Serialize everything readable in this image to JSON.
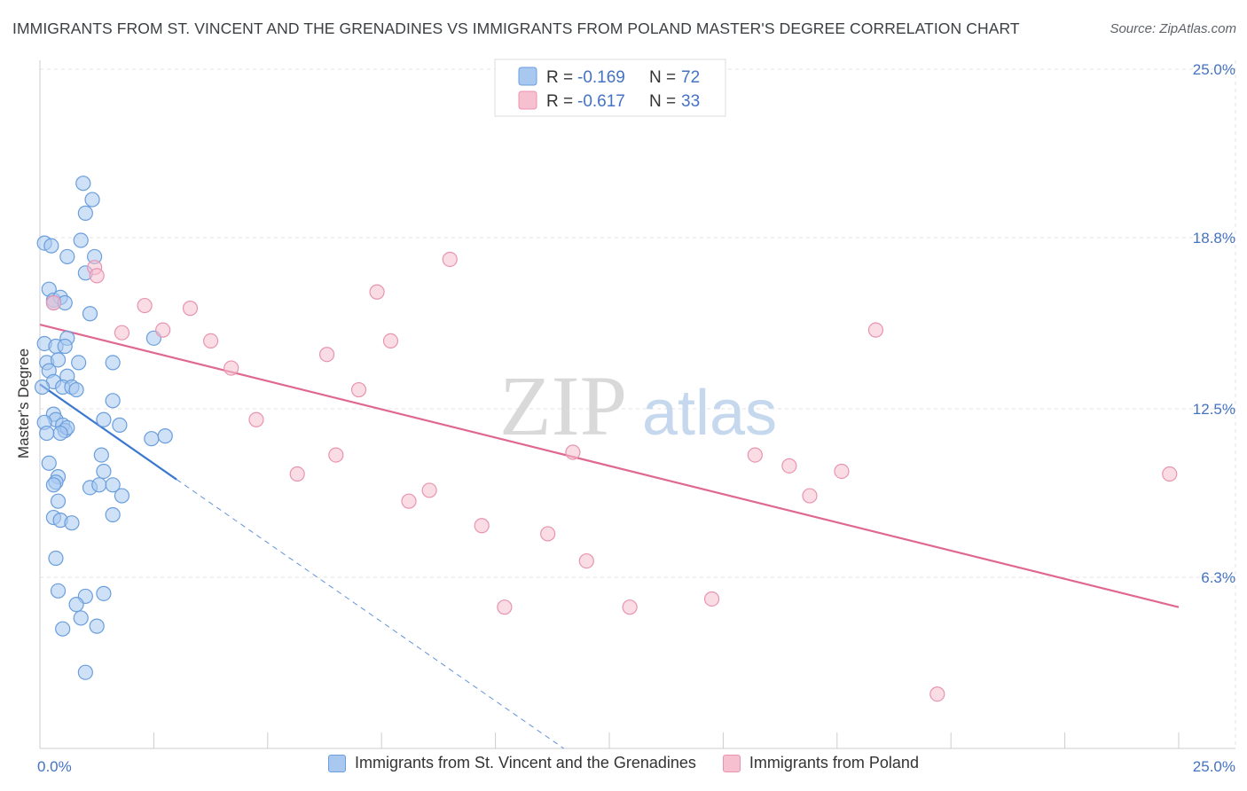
{
  "header": {
    "title": "IMMIGRANTS FROM ST. VINCENT AND THE GRENADINES VS IMMIGRANTS FROM POLAND MASTER'S DEGREE CORRELATION CHART",
    "source": "Source: ZipAtlas.com"
  },
  "watermark": {
    "zip": "ZIP",
    "atlas": "atlas"
  },
  "colors": {
    "blue_fill": "#a8c8f0",
    "blue_stroke": "#6a9edc",
    "blue_line": "#3a78d0",
    "pink_fill": "#f6c0d0",
    "pink_stroke": "#e894b0",
    "pink_line": "#e06890",
    "grid": "#e3e3e3",
    "tick_text": "#4472c4"
  },
  "legend": {
    "rows": [
      {
        "r_label": "R = ",
        "r_value": "-0.169",
        "n_label": "N = ",
        "n_value": "72"
      },
      {
        "r_label": "R = ",
        "r_value": "-0.617",
        "n_label": "N = ",
        "n_value": "33"
      }
    ]
  },
  "chart_data": {
    "type": "scatter",
    "title": "IMMIGRANTS FROM ST. VINCENT AND THE GRENADINES VS IMMIGRANTS FROM POLAND MASTER'S DEGREE CORRELATION CHART",
    "xlabel": "",
    "ylabel": "Master's Degree",
    "xlim": [
      0,
      25
    ],
    "ylim": [
      0,
      25
    ],
    "x_tick_labels": [
      "0.0%",
      "25.0%"
    ],
    "y_ticks": [
      6.3,
      12.5,
      18.8,
      25.0
    ],
    "y_tick_labels": [
      "6.3%",
      "12.5%",
      "18.8%",
      "25.0%"
    ],
    "grid": true,
    "legend_position": "top-center",
    "series": [
      {
        "name": "Immigrants from St. Vincent and the Grenadines",
        "color": "#a8c8f0",
        "R": -0.169,
        "N": 72,
        "points": [
          [
            0.95,
            20.8
          ],
          [
            1.15,
            20.2
          ],
          [
            1.0,
            19.7
          ],
          [
            0.1,
            18.6
          ],
          [
            0.25,
            18.5
          ],
          [
            0.9,
            18.7
          ],
          [
            0.6,
            18.1
          ],
          [
            1.2,
            18.1
          ],
          [
            1.0,
            17.5
          ],
          [
            0.2,
            16.9
          ],
          [
            0.3,
            16.5
          ],
          [
            0.45,
            16.6
          ],
          [
            0.3,
            16.4
          ],
          [
            0.55,
            16.4
          ],
          [
            1.1,
            16.0
          ],
          [
            0.6,
            15.1
          ],
          [
            2.5,
            15.1
          ],
          [
            0.1,
            14.9
          ],
          [
            0.35,
            14.8
          ],
          [
            0.55,
            14.8
          ],
          [
            0.15,
            14.2
          ],
          [
            0.4,
            14.3
          ],
          [
            0.85,
            14.2
          ],
          [
            1.6,
            14.2
          ],
          [
            0.2,
            13.9
          ],
          [
            0.6,
            13.7
          ],
          [
            0.3,
            13.5
          ],
          [
            0.5,
            13.3
          ],
          [
            0.7,
            13.3
          ],
          [
            0.8,
            13.2
          ],
          [
            0.05,
            13.3
          ],
          [
            1.6,
            12.8
          ],
          [
            0.3,
            12.3
          ],
          [
            0.35,
            12.1
          ],
          [
            1.4,
            12.1
          ],
          [
            0.1,
            12.0
          ],
          [
            0.5,
            11.9
          ],
          [
            1.75,
            11.9
          ],
          [
            0.55,
            11.7
          ],
          [
            0.6,
            11.8
          ],
          [
            0.45,
            11.6
          ],
          [
            0.15,
            11.6
          ],
          [
            2.45,
            11.4
          ],
          [
            2.75,
            11.5
          ],
          [
            1.35,
            10.8
          ],
          [
            0.2,
            10.5
          ],
          [
            0.4,
            10.0
          ],
          [
            1.4,
            10.2
          ],
          [
            0.35,
            9.8
          ],
          [
            0.3,
            9.7
          ],
          [
            1.1,
            9.6
          ],
          [
            1.3,
            9.7
          ],
          [
            1.6,
            9.7
          ],
          [
            1.8,
            9.3
          ],
          [
            0.4,
            9.1
          ],
          [
            0.3,
            8.5
          ],
          [
            1.6,
            8.6
          ],
          [
            0.45,
            8.4
          ],
          [
            0.7,
            8.3
          ],
          [
            0.35,
            7.0
          ],
          [
            0.4,
            5.8
          ],
          [
            1.4,
            5.7
          ],
          [
            1.0,
            5.6
          ],
          [
            0.8,
            5.3
          ],
          [
            0.9,
            4.8
          ],
          [
            1.25,
            4.5
          ],
          [
            0.5,
            4.4
          ],
          [
            1.0,
            2.8
          ]
        ],
        "trend": {
          "x": [
            0,
            3.0
          ],
          "y": [
            13.4,
            9.9
          ]
        },
        "trend_extended": {
          "x": [
            3.0,
            11.5
          ],
          "y": [
            9.9,
            0
          ]
        }
      },
      {
        "name": "Immigrants from Poland",
        "color": "#f6c0d0",
        "R": -0.617,
        "N": 33,
        "points": [
          [
            0.3,
            16.4
          ],
          [
            1.2,
            17.7
          ],
          [
            1.25,
            17.4
          ],
          [
            2.3,
            16.3
          ],
          [
            3.3,
            16.2
          ],
          [
            2.7,
            15.4
          ],
          [
            1.8,
            15.3
          ],
          [
            3.75,
            15.0
          ],
          [
            4.2,
            14.0
          ],
          [
            6.3,
            14.5
          ],
          [
            7.4,
            16.8
          ],
          [
            9.0,
            18.0
          ],
          [
            7.7,
            15.0
          ],
          [
            7.0,
            13.2
          ],
          [
            4.75,
            12.1
          ],
          [
            5.65,
            10.1
          ],
          [
            6.5,
            10.8
          ],
          [
            8.55,
            9.5
          ],
          [
            8.1,
            9.1
          ],
          [
            11.7,
            10.9
          ],
          [
            9.7,
            8.2
          ],
          [
            11.15,
            7.9
          ],
          [
            12.0,
            6.9
          ],
          [
            10.2,
            5.2
          ],
          [
            12.95,
            5.2
          ],
          [
            14.75,
            5.5
          ],
          [
            15.7,
            10.8
          ],
          [
            16.45,
            10.4
          ],
          [
            16.9,
            9.3
          ],
          [
            17.6,
            10.2
          ],
          [
            18.35,
            15.4
          ],
          [
            19.7,
            2.0
          ],
          [
            24.8,
            10.1
          ]
        ],
        "trend": {
          "x": [
            0,
            25
          ],
          "y": [
            15.6,
            5.2
          ]
        }
      }
    ]
  },
  "bottom_legend": {
    "items": [
      {
        "label": "Immigrants from St. Vincent and the Grenadines"
      },
      {
        "label": "Immigrants from Poland"
      }
    ]
  }
}
